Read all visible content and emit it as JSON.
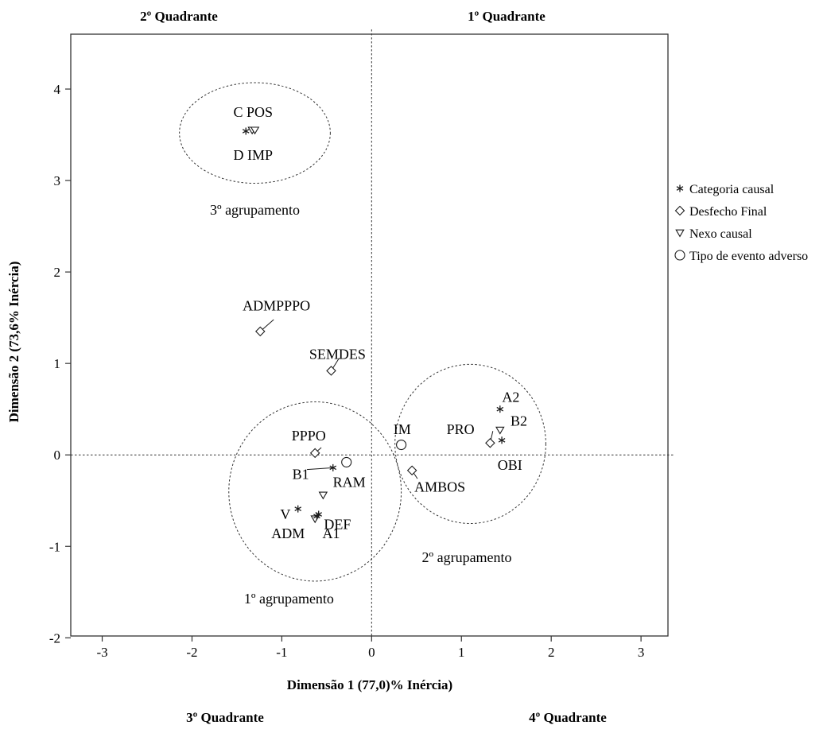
{
  "chart_data": {
    "type": "scatter",
    "xlabel": "Dimensão  1 (77,0)% Inércia)",
    "ylabel": "Dimensão 2 (73,6% Inércia)",
    "xlim": [
      -3.35,
      3.3
    ],
    "ylim": [
      -1.98,
      4.6
    ],
    "xticks": [
      "-3",
      "-2",
      "-1",
      "0",
      "1",
      "2",
      "3"
    ],
    "yticks": [
      "-2",
      "-1",
      "0",
      "1",
      "2",
      "3",
      "4"
    ],
    "xtick_values": [
      -3,
      -2,
      -1,
      0,
      1,
      2,
      3
    ],
    "ytick_values": [
      -2,
      -1,
      0,
      1,
      2,
      3,
      4
    ],
    "reference_lines": {
      "x": 0,
      "y": 0,
      "style": "dotted"
    },
    "quadrants": {
      "q2": "2º Quadrante",
      "q1": "1º Quadrante",
      "q3": "3º Quadrante",
      "q4": "4º Quadrante"
    },
    "legend": {
      "placement": "right",
      "entries": [
        {
          "symbol": "star",
          "label": "Categoria causal"
        },
        {
          "symbol": "diamond",
          "label": "Desfecho Final"
        },
        {
          "symbol": "triangle-down",
          "label": "Nexo causal"
        },
        {
          "symbol": "circle",
          "label": "Tipo de evento adverso"
        }
      ]
    },
    "groups": [
      {
        "label": "3º agrupamento",
        "center": [
          -1.3,
          3.52
        ],
        "radii": [
          0.84,
          0.55
        ],
        "label_at": [
          -1.3,
          2.68
        ]
      },
      {
        "label": "1º agrupamento",
        "center": [
          -0.63,
          -0.4
        ],
        "radii": [
          0.96,
          0.98
        ],
        "label_at": [
          -0.92,
          -1.57
        ]
      },
      {
        "label": "2º agrupamento",
        "center": [
          1.1,
          0.12
        ],
        "radii": [
          0.84,
          0.87
        ],
        "label_at": [
          1.06,
          -1.12
        ]
      }
    ],
    "points": [
      {
        "label": "C POS",
        "symbol": "star",
        "x": -1.4,
        "y": 3.54,
        "label_at": [
          -1.32,
          3.75
        ]
      },
      {
        "label": "",
        "symbol": "triangle-down",
        "x": -1.33,
        "y": 3.55
      },
      {
        "label": "D IMP",
        "symbol": "triangle-down",
        "x": -1.3,
        "y": 3.55,
        "label_at": [
          -1.32,
          3.28
        ]
      },
      {
        "label": "ADMPPPO",
        "symbol": "diamond",
        "x": -1.24,
        "y": 1.35,
        "label_at": [
          -1.06,
          1.63
        ],
        "leader_to": [
          -1.09,
          1.48
        ]
      },
      {
        "label": "SEMDES",
        "symbol": "diamond",
        "x": -0.45,
        "y": 0.92,
        "label_at": [
          -0.38,
          1.1
        ],
        "leader_to": [
          -0.36,
          1.06
        ]
      },
      {
        "label": "PPPO",
        "symbol": "diamond",
        "x": -0.63,
        "y": 0.02,
        "label_at": [
          -0.7,
          0.21
        ],
        "leader_to": [
          -0.56,
          0.08
        ]
      },
      {
        "label": "B1",
        "symbol": "star",
        "x": -0.43,
        "y": -0.14,
        "label_at": [
          -0.79,
          -0.21
        ],
        "leader_to": [
          -0.72,
          -0.16
        ]
      },
      {
        "label": "RAM",
        "symbol": "circle",
        "x": -0.28,
        "y": -0.08,
        "label_at": [
          -0.25,
          -0.3
        ]
      },
      {
        "label": "DEF",
        "symbol": "triangle-down",
        "x": -0.54,
        "y": -0.44,
        "label_at": [
          -0.38,
          -0.76
        ]
      },
      {
        "label": "V",
        "symbol": "star",
        "x": -0.82,
        "y": -0.59,
        "label_at": [
          -0.96,
          -0.65
        ]
      },
      {
        "label": "ADM",
        "symbol": "triangle-down",
        "x": -0.63,
        "y": -0.7,
        "label_at": [
          -0.93,
          -0.86
        ]
      },
      {
        "label": "",
        "symbol": "star",
        "x": -0.61,
        "y": -0.67
      },
      {
        "label": "A1",
        "symbol": "star",
        "x": -0.59,
        "y": -0.65,
        "label_at": [
          -0.45,
          -0.86
        ]
      },
      {
        "label": "IM",
        "symbol": "circle",
        "x": 0.33,
        "y": 0.11,
        "label_at": [
          0.34,
          0.28
        ]
      },
      {
        "label": "AMBOS",
        "symbol": "diamond",
        "x": 0.45,
        "y": -0.17,
        "label_at": [
          0.76,
          -0.35
        ],
        "leader_to": [
          0.51,
          -0.26
        ]
      },
      {
        "label": "A2",
        "symbol": "star",
        "x": 1.43,
        "y": 0.5,
        "label_at": [
          1.55,
          0.63
        ]
      },
      {
        "label": "B2",
        "symbol": "triangle-down",
        "x": 1.43,
        "y": 0.27,
        "label_at": [
          1.64,
          0.37
        ]
      },
      {
        "label": "PRO",
        "symbol": "diamond",
        "x": 1.32,
        "y": 0.13,
        "label_at": [
          0.99,
          0.28
        ],
        "leader_to": [
          1.35,
          0.26
        ]
      },
      {
        "label": "OBI",
        "symbol": "star",
        "x": 1.45,
        "y": 0.16,
        "label_at": [
          1.54,
          -0.11
        ]
      }
    ]
  }
}
